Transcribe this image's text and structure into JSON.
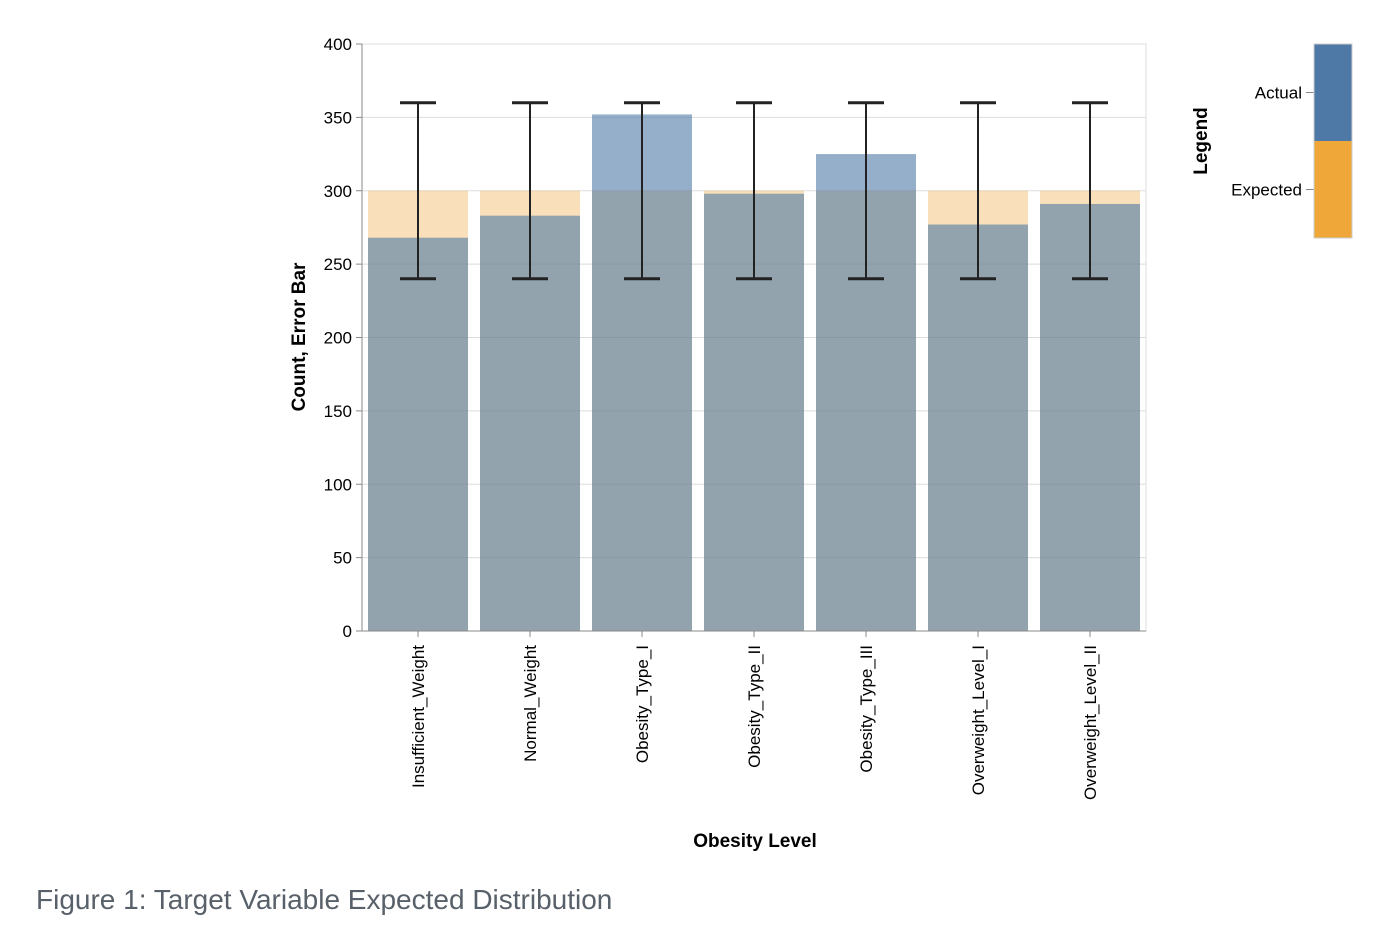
{
  "caption": "Figure 1: Target Variable Expected Distribution",
  "chart_data": {
    "type": "bar",
    "title": "",
    "xlabel": "Obesity Level",
    "ylabel": "Count, Error Bar",
    "categories": [
      "Insufficient_Weight",
      "Normal_Weight",
      "Obesity_Type_I",
      "Obesity_Type_II",
      "Obesity_Type_III",
      "Overweight_Level_I",
      "Overweight_Level_II"
    ],
    "series": [
      {
        "name": "Expected",
        "color": "#f0a73a",
        "values": [
          300,
          300,
          300,
          300,
          300,
          300,
          300
        ]
      },
      {
        "name": "Actual",
        "color": "#4e79a7",
        "values": [
          268,
          283,
          352,
          298,
          325,
          277,
          291
        ]
      }
    ],
    "error_bars": {
      "lower": [
        240,
        240,
        240,
        240,
        240,
        240,
        240
      ],
      "upper": [
        360,
        360,
        360,
        360,
        360,
        360,
        360
      ]
    },
    "ylim": [
      0,
      400
    ],
    "yticks": [
      0,
      50,
      100,
      150,
      200,
      250,
      300,
      350,
      400
    ],
    "grid": true,
    "legend": {
      "title": "Legend",
      "position": "right",
      "entries": [
        {
          "label": "Actual",
          "color": "#4e79a7"
        },
        {
          "label": "Expected",
          "color": "#f0a73a"
        }
      ]
    }
  }
}
